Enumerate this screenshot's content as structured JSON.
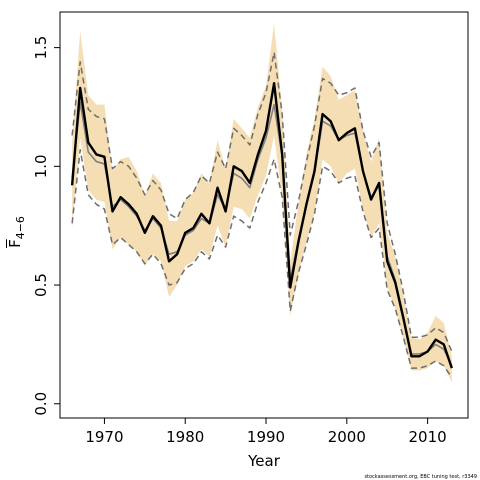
{
  "chart_data": {
    "type": "line",
    "xlabel": "Year",
    "ylabel": {
      "main": "F",
      "subscript": "4−6"
    },
    "xlim": [
      1964.5,
      2015.0
    ],
    "ylim": [
      -0.06,
      1.65
    ],
    "x_ticks": [
      1970,
      1980,
      1990,
      2000,
      2010
    ],
    "y_ticks": [
      0.0,
      0.5,
      1.0,
      1.5
    ],
    "y_tick_labels": [
      "0.0",
      "0.5",
      "1.0",
      "1.5"
    ],
    "grid": false,
    "legend": "none",
    "footer": "stockassessment.org, EBC tuning test, r3349",
    "colors": {
      "band": "#f5deb3",
      "estimate": "#000000",
      "alt_estimate": "#808080",
      "alt_bounds": "#6e6e6e"
    },
    "x": [
      1966,
      1967,
      1968,
      1969,
      1970,
      1971,
      1972,
      1973,
      1974,
      1975,
      1976,
      1977,
      1978,
      1979,
      1980,
      1981,
      1982,
      1983,
      1984,
      1985,
      1986,
      1987,
      1988,
      1989,
      1990,
      1991,
      1992,
      1993,
      1994,
      1995,
      1996,
      1997,
      1998,
      1999,
      2000,
      2001,
      2002,
      2003,
      2004,
      2005,
      2006,
      2007,
      2008,
      2009,
      2010,
      2011,
      2012,
      2013
    ],
    "series": [
      {
        "role": "estimate",
        "values": [
          0.92,
          1.33,
          1.1,
          1.05,
          1.04,
          0.81,
          0.87,
          0.84,
          0.8,
          0.72,
          0.79,
          0.75,
          0.6,
          0.63,
          0.72,
          0.74,
          0.8,
          0.76,
          0.91,
          0.81,
          1.0,
          0.98,
          0.93,
          1.05,
          1.15,
          1.35,
          1.05,
          0.49,
          0.68,
          0.84,
          0.98,
          1.22,
          1.19,
          1.11,
          1.14,
          1.16,
          0.98,
          0.86,
          0.93,
          0.6,
          0.51,
          0.36,
          0.2,
          0.2,
          0.22,
          0.27,
          0.25,
          0.15
        ]
      },
      {
        "role": "band_upper",
        "values": [
          1.1,
          1.57,
          1.3,
          1.26,
          1.26,
          0.98,
          1.03,
          1.04,
          0.98,
          0.88,
          0.97,
          0.93,
          0.77,
          0.77,
          0.86,
          0.89,
          0.97,
          0.93,
          1.11,
          0.99,
          1.2,
          1.16,
          1.12,
          1.25,
          1.34,
          1.6,
          1.24,
          0.6,
          0.84,
          1.05,
          1.2,
          1.42,
          1.38,
          1.28,
          1.3,
          1.32,
          1.15,
          1.02,
          1.12,
          0.72,
          0.62,
          0.46,
          0.28,
          0.27,
          0.3,
          0.37,
          0.34,
          0.2
        ]
      },
      {
        "role": "band_lower",
        "values": [
          0.74,
          1.12,
          0.9,
          0.86,
          0.85,
          0.65,
          0.7,
          0.67,
          0.64,
          0.58,
          0.63,
          0.6,
          0.45,
          0.5,
          0.58,
          0.6,
          0.65,
          0.62,
          0.75,
          0.66,
          0.83,
          0.82,
          0.78,
          0.88,
          0.96,
          1.13,
          0.87,
          0.37,
          0.54,
          0.68,
          0.8,
          1.03,
          1.0,
          0.93,
          0.97,
          0.99,
          0.82,
          0.7,
          0.76,
          0.49,
          0.4,
          0.27,
          0.14,
          0.14,
          0.15,
          0.18,
          0.16,
          0.09
        ]
      },
      {
        "role": "alt_estimate",
        "values": [
          0.95,
          1.27,
          1.06,
          1.02,
          1.01,
          0.83,
          0.86,
          0.83,
          0.79,
          0.73,
          0.78,
          0.74,
          0.63,
          0.64,
          0.71,
          0.73,
          0.78,
          0.76,
          0.88,
          0.82,
          0.97,
          0.95,
          0.91,
          1.03,
          1.12,
          1.26,
          1.04,
          0.52,
          0.69,
          0.84,
          0.97,
          1.19,
          1.17,
          1.11,
          1.13,
          1.14,
          0.98,
          0.87,
          0.92,
          0.62,
          0.52,
          0.37,
          0.21,
          0.21,
          0.22,
          0.25,
          0.23,
          0.16
        ]
      },
      {
        "role": "alt_upper",
        "values": [
          1.13,
          1.44,
          1.24,
          1.21,
          1.2,
          0.99,
          1.02,
          1.0,
          0.95,
          0.88,
          0.94,
          0.9,
          0.8,
          0.78,
          0.86,
          0.89,
          0.96,
          0.93,
          1.06,
          0.99,
          1.16,
          1.13,
          1.09,
          1.22,
          1.31,
          1.48,
          1.22,
          0.71,
          0.85,
          1.02,
          1.17,
          1.37,
          1.35,
          1.3,
          1.31,
          1.33,
          1.15,
          1.04,
          1.1,
          0.76,
          0.63,
          0.47,
          0.28,
          0.28,
          0.29,
          0.32,
          0.3,
          0.22
        ]
      },
      {
        "role": "alt_lower",
        "values": [
          0.76,
          1.07,
          0.88,
          0.84,
          0.82,
          0.67,
          0.7,
          0.67,
          0.64,
          0.59,
          0.63,
          0.59,
          0.5,
          0.51,
          0.57,
          0.59,
          0.64,
          0.61,
          0.71,
          0.66,
          0.79,
          0.77,
          0.74,
          0.85,
          0.93,
          1.03,
          0.87,
          0.39,
          0.55,
          0.67,
          0.8,
          1.0,
          0.98,
          0.93,
          0.95,
          0.96,
          0.81,
          0.7,
          0.74,
          0.48,
          0.4,
          0.28,
          0.15,
          0.15,
          0.16,
          0.18,
          0.16,
          0.11
        ]
      }
    ]
  }
}
